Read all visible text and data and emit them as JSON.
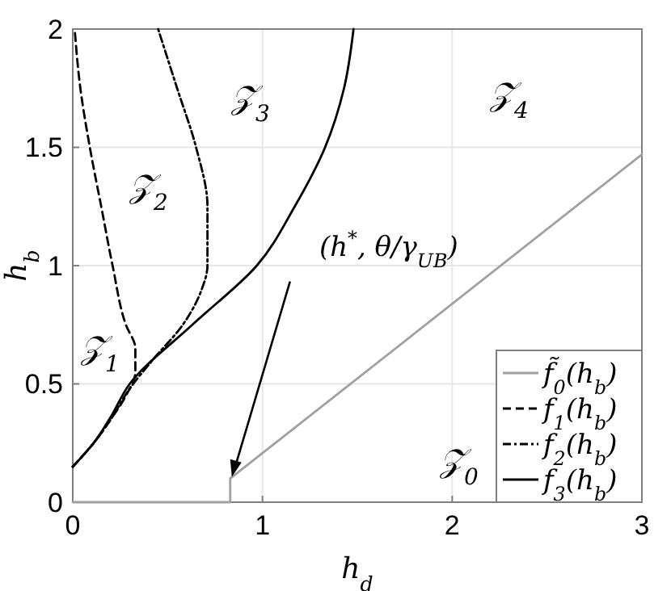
{
  "chart_data": {
    "type": "line",
    "xlabel": "h$_{d}$",
    "ylabel": "h$_{b}$",
    "xlim": [
      0,
      3
    ],
    "ylim": [
      0,
      2
    ],
    "xticks": [
      0,
      1,
      2,
      3
    ],
    "yticks": [
      0,
      0.5,
      1,
      1.5,
      2
    ],
    "grid": true,
    "legend": "bottom right",
    "marker": "none",
    "series": [
      {
        "name": "f̃$_{0}$(h$_{b}$)",
        "color": "#a0a0a0",
        "line_style": "solid",
        "x": [
          0,
          0.83,
          0.83,
          3
        ],
        "values": [
          0,
          0,
          0.1,
          1.47
        ]
      },
      {
        "name": "f$_{1}$(h$_{b}$)",
        "color": "#000000",
        "line_style": "dashed",
        "x": [
          0,
          0.11,
          0.2,
          0.28,
          0.33,
          0.33,
          0.28,
          0.21,
          0.15,
          0.09,
          0.04,
          0.01
        ],
        "values": [
          0.15,
          0.25,
          0.35,
          0.45,
          0.55,
          0.65,
          0.75,
          1,
          1.25,
          1.5,
          1.75,
          2
        ]
      },
      {
        "name": "f$_{2}$(h$_{b}$)",
        "color": "#000000",
        "line_style": "dashdot",
        "x": [
          0,
          0.11,
          0.2,
          0.3,
          0.42,
          0.58,
          0.68,
          0.71,
          0.71,
          0.65,
          0.55,
          0.45
        ],
        "values": [
          0.15,
          0.25,
          0.35,
          0.48,
          0.6,
          0.75,
          0.9,
          1,
          1.25,
          1.5,
          1.75,
          2
        ]
      },
      {
        "name": "f$_{3}$(h$_{b}$)",
        "color": "#000000",
        "line_style": "solid",
        "x": [
          0,
          0.11,
          0.2,
          0.3,
          0.63,
          0.97,
          1.17,
          1.33,
          1.43,
          1.48
        ],
        "values": [
          0.15,
          0.25,
          0.36,
          0.5,
          0.75,
          1,
          1.25,
          1.5,
          1.75,
          2
        ]
      }
    ],
    "annotations": [
      "𝒵$_{0}$",
      "𝒵$_{1}$",
      "𝒵$_{2}$",
      "𝒵$_{3}$",
      "𝒵$_{4}$",
      {
        "text": "(h$^{*}$, θ/γ$_{UB}$)",
        "x": 0.83,
        "y": 0.1
      }
    ]
  }
}
